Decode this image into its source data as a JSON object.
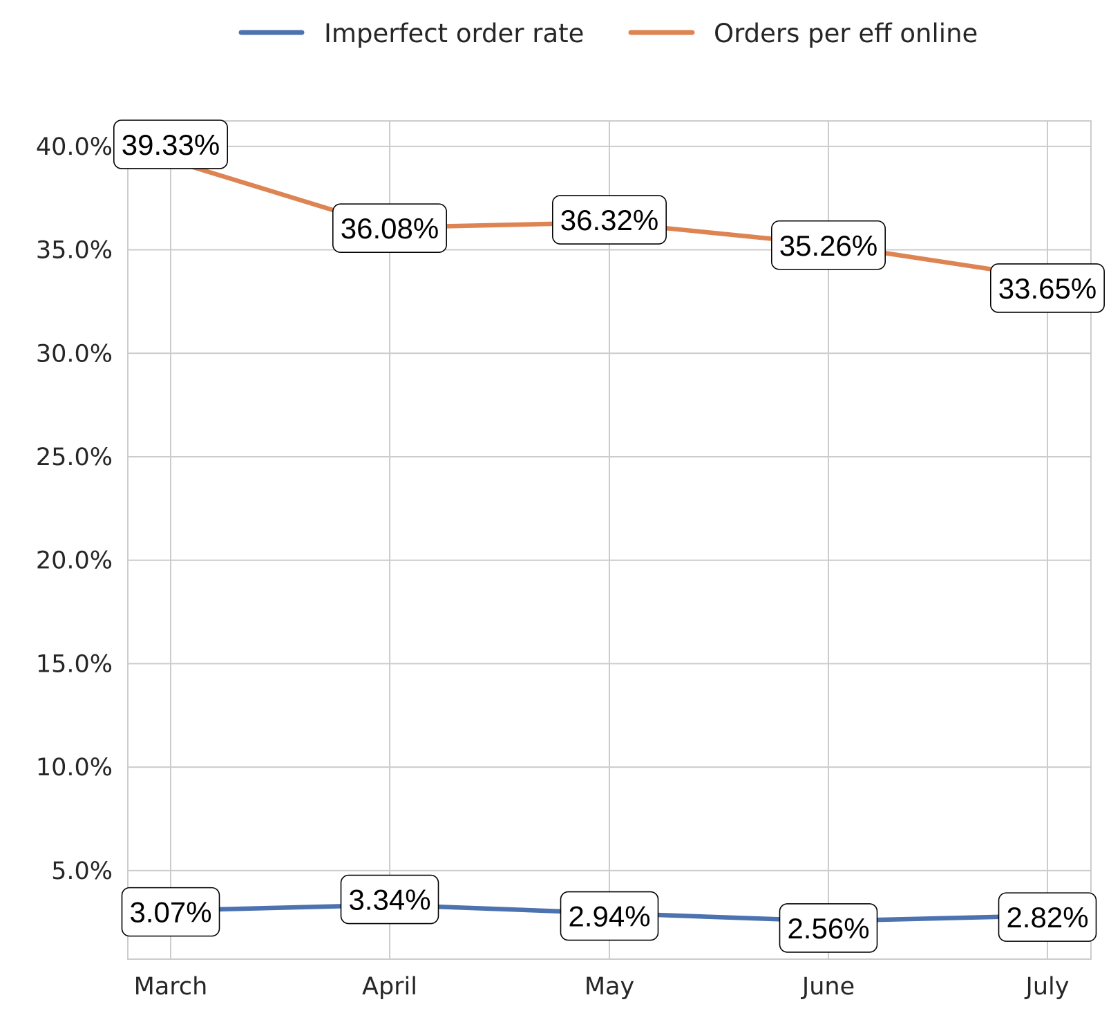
{
  "chart_data": {
    "type": "line",
    "categories": [
      "March",
      "April",
      "May",
      "June",
      "July"
    ],
    "series": [
      {
        "name": "Imperfect order rate",
        "color": "#4c72b0",
        "values": [
          3.07,
          3.34,
          2.94,
          2.56,
          2.82
        ],
        "labels": [
          "3.07%",
          "3.34%",
          "2.94%",
          "2.56%",
          "2.82%"
        ]
      },
      {
        "name": "Orders per eff online",
        "color": "#dd8452",
        "values": [
          39.33,
          36.08,
          36.32,
          35.26,
          33.65
        ],
        "labels": [
          "39.33%",
          "36.08%",
          "36.32%",
          "35.26%",
          "33.65%"
        ]
      }
    ],
    "yticks": [
      5.0,
      10.0,
      15.0,
      20.0,
      25.0,
      30.0,
      35.0,
      40.0
    ],
    "ytick_labels": [
      "5.0%",
      "10.0%",
      "15.0%",
      "20.0%",
      "25.0%",
      "30.0%",
      "35.0%",
      "40.0%"
    ],
    "ylim": [
      0.72,
      41.23
    ],
    "grid": true,
    "legend_position": "top-center",
    "title": "",
    "xlabel": "",
    "ylabel": ""
  }
}
